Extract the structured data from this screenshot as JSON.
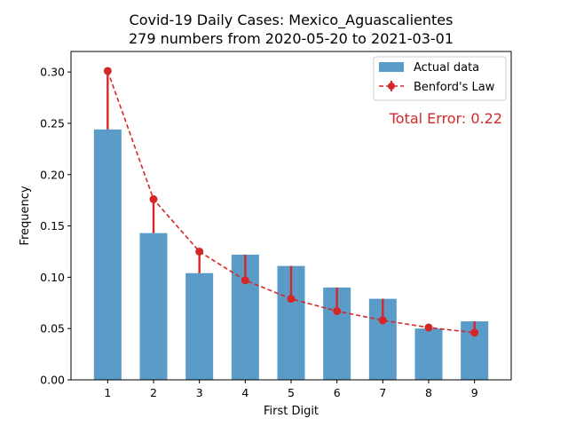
{
  "chart_data": {
    "type": "bar",
    "title": "Covid-19 Daily Cases: Mexico_Aguascalientes",
    "subtitle": "279 numbers from 2020-05-20 to 2021-03-01",
    "xlabel": "First Digit",
    "ylabel": "Frequency",
    "ylim": [
      0,
      0.32
    ],
    "yticks": [
      0.0,
      0.05,
      0.1,
      0.15,
      0.2,
      0.25,
      0.3
    ],
    "ytick_labels": [
      "0.00",
      "0.05",
      "0.10",
      "0.15",
      "0.20",
      "0.25",
      "0.30"
    ],
    "categories": [
      "1",
      "2",
      "3",
      "4",
      "5",
      "6",
      "7",
      "8",
      "9"
    ],
    "x": [
      1,
      2,
      3,
      4,
      5,
      6,
      7,
      8,
      9
    ],
    "series": [
      {
        "name": "Actual data",
        "type": "bar",
        "color": "#5b9bc8",
        "values": [
          0.244,
          0.143,
          0.104,
          0.122,
          0.111,
          0.09,
          0.079,
          0.05,
          0.057
        ]
      },
      {
        "name": "Benford's Law",
        "type": "line",
        "color": "#d62728",
        "style": "dashed",
        "values": [
          0.301,
          0.176,
          0.125,
          0.097,
          0.079,
          0.067,
          0.058,
          0.051,
          0.046
        ]
      }
    ],
    "legend_position": "top-right",
    "annotation": "Total Error: 0.22",
    "grid": false
  }
}
